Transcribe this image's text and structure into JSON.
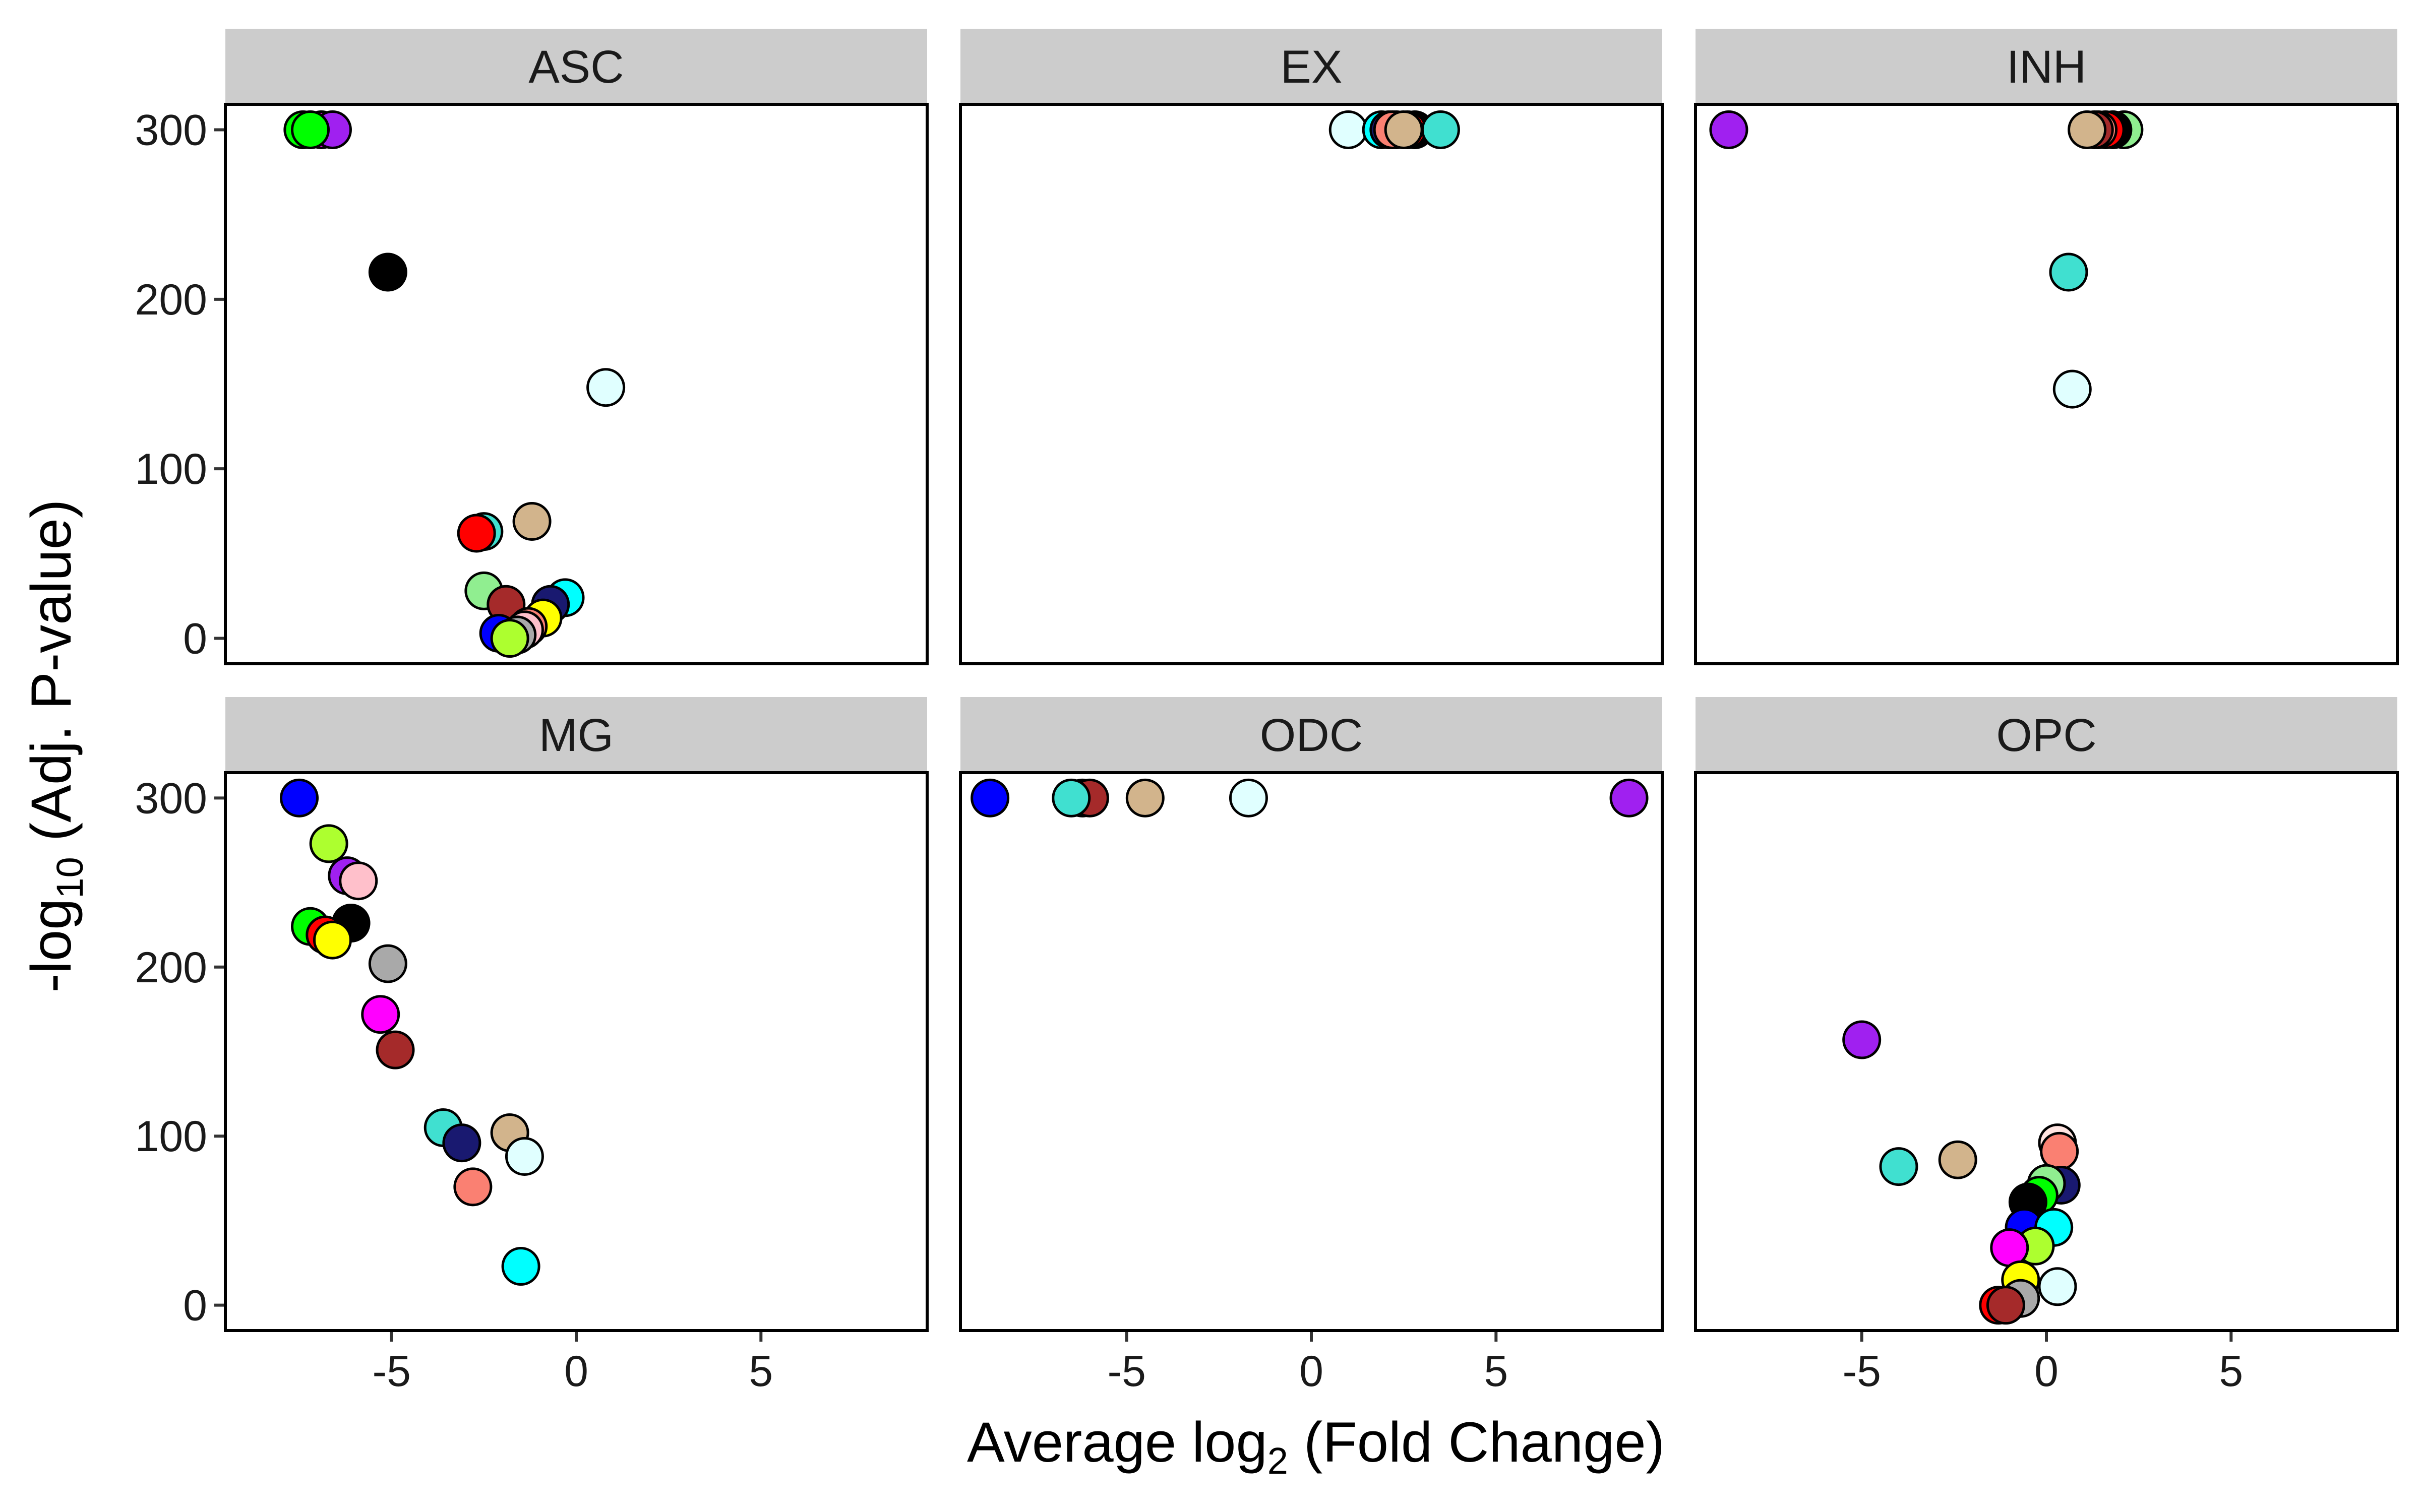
{
  "chart_data": {
    "type": "scatter",
    "layout": "facet-grid 2x3",
    "xlabel": {
      "prefix": "Average log",
      "sub": "2",
      "suffix": " (Fold Change)"
    },
    "ylabel": {
      "prefix": "-log",
      "sub": "10",
      "suffix": " (Adj. P-value)"
    },
    "xlim": [
      -9.5,
      9.5
    ],
    "ylim": [
      -15,
      315
    ],
    "xticks": [
      -5,
      0,
      5
    ],
    "xtick_labels": [
      "-5",
      "0",
      "5"
    ],
    "yticks": [
      0,
      100,
      200,
      300
    ],
    "ytick_labels": [
      "0",
      "100",
      "200",
      "300"
    ],
    "panels": [
      {
        "name": "ASC",
        "points": [
          {
            "x": -7.4,
            "y": 300,
            "color": "#00ff00"
          },
          {
            "x": -6.9,
            "y": 300,
            "color": "#ff00ff"
          },
          {
            "x": -6.6,
            "y": 300,
            "color": "#a020f0"
          },
          {
            "x": -7.2,
            "y": 300,
            "color": "#00ff00"
          },
          {
            "x": -5.1,
            "y": 216,
            "color": "#000000"
          },
          {
            "x": 0.8,
            "y": 148,
            "color": "#e0ffff"
          },
          {
            "x": -1.2,
            "y": 69,
            "color": "#d2b48c"
          },
          {
            "x": -2.5,
            "y": 63,
            "color": "#40e0d0"
          },
          {
            "x": -2.7,
            "y": 62,
            "color": "#ff0000"
          },
          {
            "x": -2.5,
            "y": 28,
            "color": "#90ee90"
          },
          {
            "x": -0.3,
            "y": 24,
            "color": "#00ffff"
          },
          {
            "x": -0.7,
            "y": 20,
            "color": "#191970"
          },
          {
            "x": -1.9,
            "y": 20,
            "color": "#a52a2a"
          },
          {
            "x": -0.9,
            "y": 12,
            "color": "#ffff00"
          },
          {
            "x": -1.3,
            "y": 7,
            "color": "#fa8072"
          },
          {
            "x": -2.1,
            "y": 3,
            "color": "#0000ff"
          },
          {
            "x": -1.4,
            "y": 5,
            "color": "#ffc0cb"
          },
          {
            "x": -1.6,
            "y": 2,
            "color": "#a9a9a9"
          },
          {
            "x": -1.8,
            "y": 0,
            "color": "#adff2f"
          }
        ]
      },
      {
        "name": "EX",
        "points": [
          {
            "x": 1.0,
            "y": 300,
            "color": "#e0ffff"
          },
          {
            "x": 1.9,
            "y": 300,
            "color": "#00ffff"
          },
          {
            "x": 2.1,
            "y": 300,
            "color": "#191970"
          },
          {
            "x": 2.3,
            "y": 300,
            "color": "#a52a2a"
          },
          {
            "x": 2.8,
            "y": 300,
            "color": "#000000"
          },
          {
            "x": 2.6,
            "y": 300,
            "color": "#ff0000"
          },
          {
            "x": 2.2,
            "y": 300,
            "color": "#fa8072"
          },
          {
            "x": 3.5,
            "y": 300,
            "color": "#40e0d0"
          },
          {
            "x": 2.5,
            "y": 300,
            "color": "#d2b48c"
          }
        ]
      },
      {
        "name": "INH",
        "points": [
          {
            "x": -8.6,
            "y": 300,
            "color": "#a020f0"
          },
          {
            "x": 2.1,
            "y": 300,
            "color": "#90ee90"
          },
          {
            "x": 1.8,
            "y": 300,
            "color": "#000000"
          },
          {
            "x": 1.6,
            "y": 300,
            "color": "#ff0000"
          },
          {
            "x": 1.4,
            "y": 300,
            "color": "#fa8072"
          },
          {
            "x": 1.3,
            "y": 300,
            "color": "#a52a2a"
          },
          {
            "x": 1.1,
            "y": 300,
            "color": "#d2b48c"
          },
          {
            "x": 0.6,
            "y": 216,
            "color": "#40e0d0"
          },
          {
            "x": 0.7,
            "y": 147,
            "color": "#e0ffff"
          }
        ]
      },
      {
        "name": "MG",
        "points": [
          {
            "x": -7.5,
            "y": 300,
            "color": "#0000ff"
          },
          {
            "x": -6.7,
            "y": 273,
            "color": "#adff2f"
          },
          {
            "x": -6.2,
            "y": 254,
            "color": "#a020f0"
          },
          {
            "x": -5.9,
            "y": 251,
            "color": "#ffc0cb"
          },
          {
            "x": -7.2,
            "y": 224,
            "color": "#00ff00"
          },
          {
            "x": -6.1,
            "y": 226,
            "color": "#000000"
          },
          {
            "x": -6.8,
            "y": 219,
            "color": "#ff0000"
          },
          {
            "x": -6.6,
            "y": 216,
            "color": "#ffff00"
          },
          {
            "x": -5.1,
            "y": 202,
            "color": "#a9a9a9"
          },
          {
            "x": -5.3,
            "y": 172,
            "color": "#ff00ff"
          },
          {
            "x": -4.9,
            "y": 151,
            "color": "#a52a2a"
          },
          {
            "x": -3.6,
            "y": 105,
            "color": "#40e0d0"
          },
          {
            "x": -3.1,
            "y": 96,
            "color": "#191970"
          },
          {
            "x": -1.8,
            "y": 102,
            "color": "#d2b48c"
          },
          {
            "x": -1.4,
            "y": 88,
            "color": "#e0ffff"
          },
          {
            "x": -2.8,
            "y": 70,
            "color": "#fa8072"
          },
          {
            "x": -1.5,
            "y": 23,
            "color": "#00ffff"
          }
        ]
      },
      {
        "name": "ODC",
        "points": [
          {
            "x": -8.7,
            "y": 300,
            "color": "#0000ff"
          },
          {
            "x": -6.2,
            "y": 300,
            "color": "#ff0000"
          },
          {
            "x": -6.0,
            "y": 300,
            "color": "#a52a2a"
          },
          {
            "x": -6.5,
            "y": 300,
            "color": "#40e0d0"
          },
          {
            "x": -4.5,
            "y": 300,
            "color": "#d2b48c"
          },
          {
            "x": -1.7,
            "y": 300,
            "color": "#e0ffff"
          },
          {
            "x": 8.6,
            "y": 300,
            "color": "#a020f0"
          }
        ]
      },
      {
        "name": "OPC",
        "points": [
          {
            "x": -5.0,
            "y": 157,
            "color": "#a020f0"
          },
          {
            "x": -4.0,
            "y": 82,
            "color": "#40e0d0"
          },
          {
            "x": -2.4,
            "y": 86,
            "color": "#d2b48c"
          },
          {
            "x": 0.3,
            "y": 96,
            "color": "#ffe4e1"
          },
          {
            "x": 0.35,
            "y": 91,
            "color": "#fa8072"
          },
          {
            "x": 0.4,
            "y": 71,
            "color": "#191970"
          },
          {
            "x": 0.0,
            "y": 72,
            "color": "#90ee90"
          },
          {
            "x": -0.2,
            "y": 65,
            "color": "#00ff00"
          },
          {
            "x": -0.5,
            "y": 61,
            "color": "#000000"
          },
          {
            "x": -0.6,
            "y": 46,
            "color": "#0000ff"
          },
          {
            "x": 0.2,
            "y": 46,
            "color": "#00ffff"
          },
          {
            "x": -0.3,
            "y": 35,
            "color": "#adff2f"
          },
          {
            "x": -1.0,
            "y": 34,
            "color": "#ff00ff"
          },
          {
            "x": -0.7,
            "y": 15,
            "color": "#ffff00"
          },
          {
            "x": 0.3,
            "y": 11,
            "color": "#e0ffff"
          },
          {
            "x": -0.7,
            "y": 4,
            "color": "#a9a9a9"
          },
          {
            "x": -1.3,
            "y": 0,
            "color": "#ff0000"
          },
          {
            "x": -1.1,
            "y": 0,
            "color": "#a52a2a"
          }
        ]
      }
    ]
  }
}
